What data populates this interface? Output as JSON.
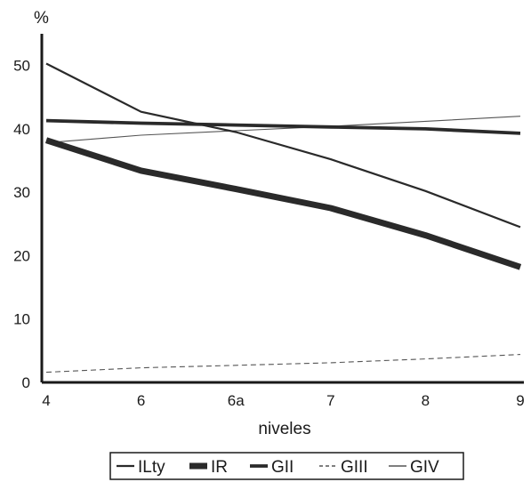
{
  "chart_data": {
    "type": "line",
    "title": "",
    "ylabel": "%",
    "xlabel": "niveles",
    "categories": [
      "4",
      "6",
      "6a",
      "7",
      "8",
      "9"
    ],
    "ylim": [
      0,
      55
    ],
    "yticks": [
      0,
      10,
      20,
      30,
      40,
      50
    ],
    "grid": false,
    "legend_position": "bottom",
    "series": [
      {
        "name": "ILty",
        "values": [
          50.3,
          42.7,
          39.5,
          35.2,
          30.2,
          24.5
        ],
        "color": "#2a2a2a",
        "style": "medium"
      },
      {
        "name": "IR",
        "values": [
          38.2,
          33.4,
          30.5,
          27.5,
          23.2,
          18.2
        ],
        "color": "#2a2a2a",
        "style": "thick"
      },
      {
        "name": "GII",
        "values": [
          41.3,
          40.9,
          40.6,
          40.3,
          40.0,
          39.3
        ],
        "color": "#2a2a2a",
        "style": "bold"
      },
      {
        "name": "GIII",
        "values": [
          1.6,
          2.3,
          2.7,
          3.1,
          3.7,
          4.4
        ],
        "color": "#555555",
        "style": "dashed"
      },
      {
        "name": "GIV",
        "values": [
          37.8,
          39.0,
          39.7,
          40.4,
          41.2,
          42.0
        ],
        "color": "#555555",
        "style": "thin"
      }
    ]
  }
}
